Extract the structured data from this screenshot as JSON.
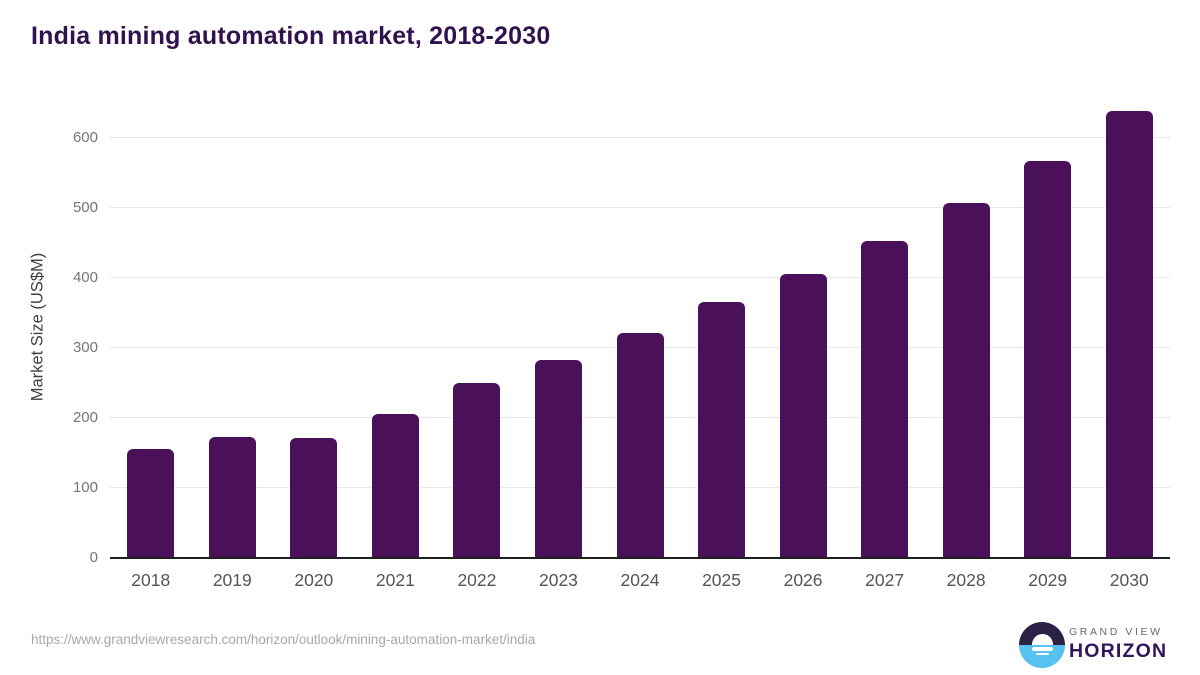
{
  "title": "India mining automation market, 2018-2030",
  "footer": {
    "source_url": "https://www.grandviewresearch.com/horizon/outlook/mining-automation-market/india"
  },
  "logo": {
    "line1": "GRAND VIEW",
    "line2": "HORIZON",
    "mark": "sun-over-horizon-icon"
  },
  "colors": {
    "bar": "#4a105a",
    "title": "#31124e",
    "grid": "#e9e9e9",
    "axis": "#1f1f1f",
    "ytick": "#757575",
    "xlabel": "#545454",
    "ylabel": "#3f3f3f",
    "url": "#a8a8a8",
    "logo_dark": "#2b2145",
    "logo_blue": "#57c1f0",
    "logo_text": "#6d677a",
    "horizon_text": "#33155c"
  },
  "chart_data": {
    "type": "bar",
    "title": "India mining automation market, 2018-2030",
    "categories": [
      "2018",
      "2019",
      "2020",
      "2021",
      "2022",
      "2023",
      "2024",
      "2025",
      "2026",
      "2027",
      "2028",
      "2029",
      "2030"
    ],
    "values": [
      154,
      172,
      170,
      205,
      248,
      282,
      320,
      365,
      405,
      452,
      506,
      566,
      637
    ],
    "xlabel": "",
    "ylabel": "Market Size (US$M)",
    "ylim": [
      0,
      660
    ],
    "yticks": [
      0,
      100,
      200,
      300,
      400,
      500,
      600
    ],
    "grid": true,
    "legend": false,
    "bar_color": "#4a105a"
  }
}
